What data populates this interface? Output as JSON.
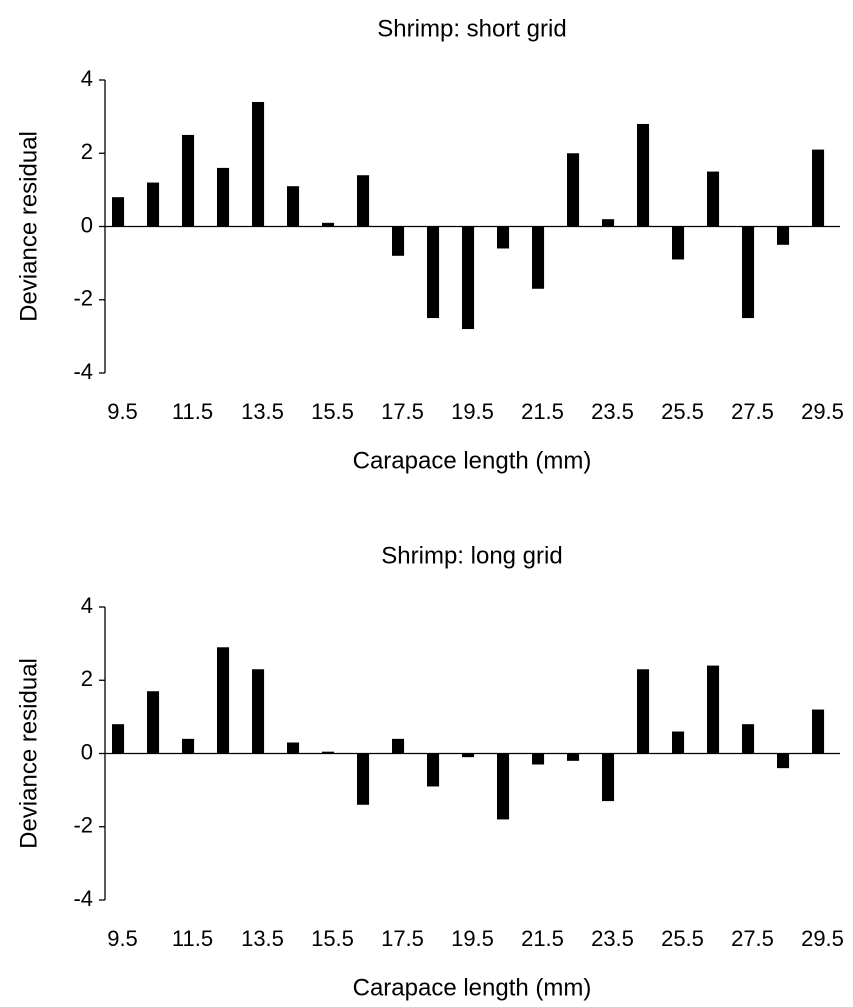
{
  "chart_data": [
    {
      "type": "bar",
      "title": "Shrimp: short grid",
      "x_label": "Carapace length (mm)",
      "y_label": "Deviance residual",
      "categories": [
        "9.5",
        null,
        "11.5",
        null,
        "13.5",
        null,
        "15.5",
        null,
        "17.5",
        null,
        "19.5",
        null,
        "21.5",
        null,
        "23.5",
        null,
        "25.5",
        null,
        "27.5",
        null,
        "29.5"
      ],
      "values": [
        0.8,
        1.2,
        2.5,
        1.6,
        3.4,
        1.1,
        0.1,
        1.4,
        -0.8,
        -2.5,
        -2.8,
        -0.6,
        -1.7,
        2.0,
        0.2,
        2.8,
        -0.9,
        1.5,
        -2.5,
        -0.5,
        2.1
      ],
      "color": "#000000",
      "ylim": [
        -4,
        4
      ],
      "yticks": [
        -4,
        -2,
        0,
        2,
        4
      ],
      "grid": false
    },
    {
      "type": "bar",
      "title": "Shrimp: long grid",
      "x_label": "Carapace length (mm)",
      "y_label": "Deviance residual",
      "categories": [
        "9.5",
        null,
        "11.5",
        null,
        "13.5",
        null,
        "15.5",
        null,
        "17.5",
        null,
        "19.5",
        null,
        "21.5",
        null,
        "23.5",
        null,
        "25.5",
        null,
        "27.5",
        null,
        "29.5"
      ],
      "values": [
        0.8,
        1.7,
        0.4,
        2.9,
        2.3,
        0.3,
        0.05,
        -1.4,
        0.4,
        -0.9,
        -0.1,
        -1.8,
        -0.3,
        -0.2,
        -1.3,
        2.3,
        0.6,
        2.4,
        0.8,
        -0.4,
        1.2
      ],
      "color": "#000000",
      "ylim": [
        -4,
        4
      ],
      "yticks": [
        -4,
        -2,
        0,
        2,
        4
      ],
      "grid": false
    }
  ]
}
